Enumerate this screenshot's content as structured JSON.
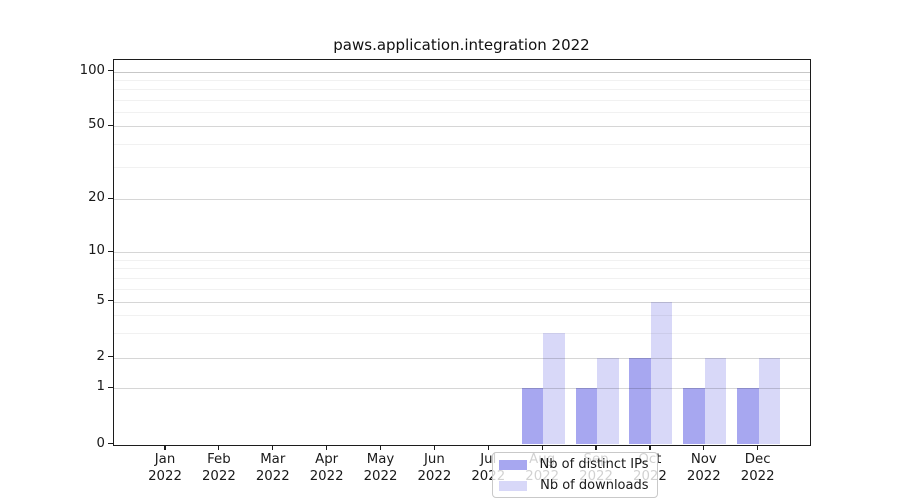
{
  "chart_data": {
    "type": "bar",
    "title": "paws.application.integration 2022",
    "categories": [
      "Jan 2022",
      "Feb 2022",
      "Mar 2022",
      "Apr 2022",
      "May 2022",
      "Jun 2022",
      "Jul 2022",
      "Aug 2022",
      "Sep 2022",
      "Oct 2022",
      "Nov 2022",
      "Dec 2022"
    ],
    "months": [
      "Jan",
      "Feb",
      "Mar",
      "Apr",
      "May",
      "Jun",
      "Jul",
      "Aug",
      "Sep",
      "Oct",
      "Nov",
      "Dec"
    ],
    "year": "2022",
    "series": [
      {
        "name": "Nb of distinct IPs",
        "color": "#a7a7f0",
        "values": [
          0,
          0,
          0,
          0,
          0,
          0,
          0,
          1,
          1,
          2,
          1,
          1
        ]
      },
      {
        "name": "Nb of downloads",
        "color": "#d8d8f8",
        "values": [
          0,
          0,
          0,
          0,
          0,
          0,
          0,
          3,
          2,
          5,
          2,
          2
        ]
      }
    ],
    "yaxis": {
      "scale": "log-like",
      "ticks": [
        0,
        1,
        2,
        5,
        10,
        20,
        50,
        100
      ],
      "minor_gridlines": [
        3,
        4,
        6,
        7,
        8,
        9,
        30,
        40,
        60,
        70,
        80,
        90
      ],
      "ylim": [
        0,
        110
      ]
    },
    "grid": "horizontal",
    "legend_position": "inside lower center-left"
  }
}
